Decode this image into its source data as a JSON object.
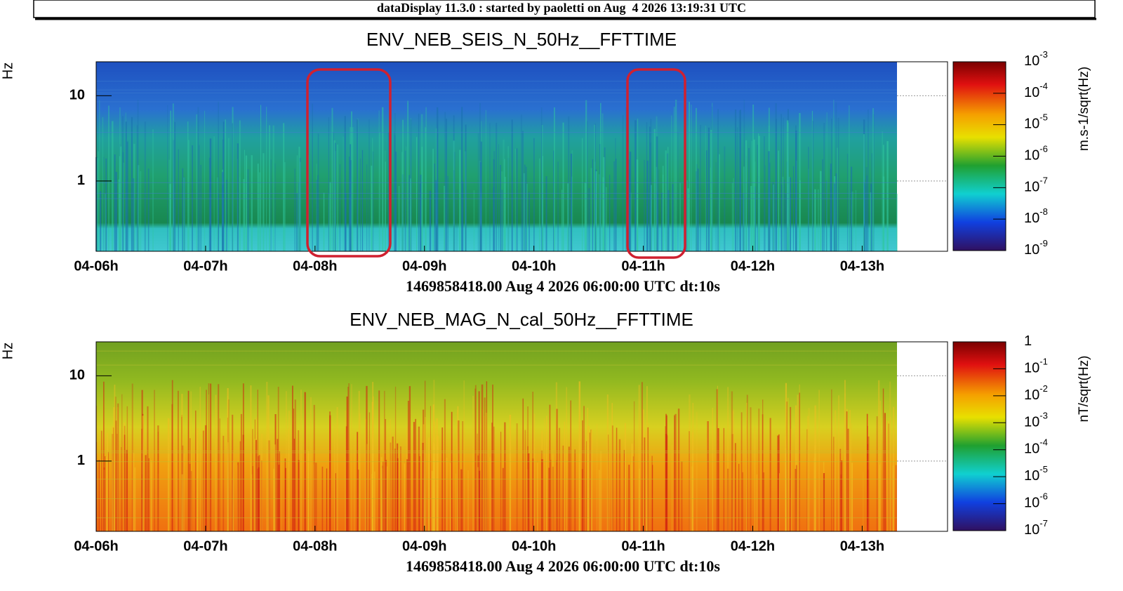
{
  "header": {
    "title": "dataDisplay 11.3.0 : started by paoletti on Aug  4 2026 13:19:31 UTC"
  },
  "chart_data": [
    {
      "type": "spectrogram",
      "title": "ENV_NEB_SEIS_N_50Hz__FFTTIME",
      "ylabel": "Hz",
      "xlabel": "1469858418.00 Aug 4 2026 06:00:00 UTC dt:10s",
      "xlim": [
        0,
        7.78
      ],
      "xticks": [
        {
          "value": 0,
          "label": "04-06h"
        },
        {
          "value": 1,
          "label": "04-07h"
        },
        {
          "value": 2,
          "label": "04-08h"
        },
        {
          "value": 3,
          "label": "04-09h"
        },
        {
          "value": 4,
          "label": "04-10h"
        },
        {
          "value": 5,
          "label": "04-11h"
        },
        {
          "value": 6,
          "label": "04-12h"
        },
        {
          "value": 7,
          "label": "04-13h"
        }
      ],
      "ylim": [
        0.15,
        25
      ],
      "ylog": true,
      "yticks": [
        1,
        10
      ],
      "zlim": [
        1e-09,
        0.001
      ],
      "zlog": true,
      "zlabel": "m.s-1/sqrt(Hz)",
      "zticks": [
        {
          "value": 0.001,
          "label": "10",
          "exponent": "-3"
        },
        {
          "value": 0.0001,
          "label": "10",
          "exponent": "-4"
        },
        {
          "value": 1e-05,
          "label": "10",
          "exponent": "-5"
        },
        {
          "value": 1e-06,
          "label": "10",
          "exponent": "-6"
        },
        {
          "value": 1e-07,
          "label": "10",
          "exponent": "-7"
        },
        {
          "value": 1e-08,
          "label": "10",
          "exponent": "-8"
        },
        {
          "value": 1e-09,
          "label": "10",
          "exponent": "-9"
        }
      ]
    },
    {
      "type": "spectrogram",
      "title": "ENV_NEB_MAG_N_cal_50Hz__FFTTIME",
      "ylabel": "Hz",
      "xlabel": "1469858418.00 Aug 4 2026 06:00:00 UTC dt:10s",
      "xlim": [
        0,
        7.78
      ],
      "xticks": [
        {
          "value": 0,
          "label": "04-06h"
        },
        {
          "value": 1,
          "label": "04-07h"
        },
        {
          "value": 2,
          "label": "04-08h"
        },
        {
          "value": 3,
          "label": "04-09h"
        },
        {
          "value": 4,
          "label": "04-10h"
        },
        {
          "value": 5,
          "label": "04-11h"
        },
        {
          "value": 6,
          "label": "04-12h"
        },
        {
          "value": 7,
          "label": "04-13h"
        }
      ],
      "ylim": [
        0.15,
        25
      ],
      "ylog": true,
      "yticks": [
        1,
        10
      ],
      "zlim": [
        1e-07,
        1
      ],
      "zlog": true,
      "zlabel": "nT/sqrt(Hz)",
      "zticks": [
        1,
        {
          "value": 0.1,
          "label": "10",
          "exponent": "-1"
        },
        {
          "value": 0.01,
          "label": "10",
          "exponent": "-2"
        },
        {
          "value": 0.001,
          "label": "10",
          "exponent": "-3"
        },
        {
          "value": 0.0001,
          "label": "10",
          "exponent": "-4"
        },
        {
          "value": 1e-05,
          "label": "10",
          "exponent": "-5"
        },
        {
          "value": 1e-06,
          "label": "10",
          "exponent": "-6"
        },
        {
          "value": 1e-07,
          "label": "10",
          "exponent": "-7"
        }
      ]
    }
  ]
}
